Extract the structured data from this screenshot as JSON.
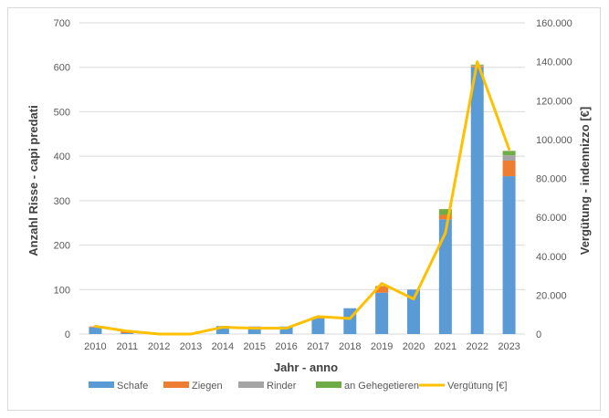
{
  "chart_data": {
    "type": "bar",
    "stacked": true,
    "title": "",
    "xlabel": "Jahr - anno",
    "ylabel": "Anzahl Risse - capi predati",
    "y2label": "Vergütung - indennizzo [€]",
    "ylim": [
      0,
      700
    ],
    "y2lim": [
      0,
      160000
    ],
    "yticks": [
      "0",
      "100",
      "200",
      "300",
      "400",
      "500",
      "600",
      "700"
    ],
    "y2ticks": [
      "0",
      "20.000",
      "40.000",
      "60.000",
      "80.000",
      "100.000",
      "120.000",
      "140.000",
      "160.000"
    ],
    "grid": true,
    "legend_position": "bottom",
    "categories": [
      "2010",
      "2011",
      "2012",
      "2013",
      "2014",
      "2015",
      "2016",
      "2017",
      "2018",
      "2019",
      "2020",
      "2021",
      "2022",
      "2023"
    ],
    "series": [
      {
        "name": "Schafe",
        "type": "bar",
        "color": "#5b9bd5",
        "values": [
          15,
          2,
          0,
          0,
          18,
          17,
          17,
          35,
          58,
          93,
          100,
          258,
          600,
          355
        ]
      },
      {
        "name": "Ziegen",
        "type": "bar",
        "color": "#ed7d31",
        "values": [
          2,
          5,
          0,
          0,
          0,
          0,
          0,
          3,
          0,
          15,
          0,
          10,
          2,
          35
        ]
      },
      {
        "name": "Rinder",
        "type": "bar",
        "color": "#a5a5a5",
        "values": [
          0,
          0,
          0,
          0,
          0,
          0,
          0,
          0,
          0,
          0,
          0,
          0,
          2,
          12
        ]
      },
      {
        "name": "an Gehegetieren",
        "type": "bar",
        "color": "#70ad47",
        "values": [
          0,
          0,
          0,
          0,
          0,
          0,
          0,
          0,
          0,
          0,
          0,
          13,
          2,
          10
        ]
      },
      {
        "name": "Vergütung [€]",
        "type": "line",
        "axis": "right",
        "color": "#ffc000",
        "values": [
          4000,
          1500,
          0,
          0,
          3500,
          3000,
          3000,
          9000,
          8000,
          26000,
          18000,
          52000,
          140000,
          95000
        ]
      }
    ]
  }
}
